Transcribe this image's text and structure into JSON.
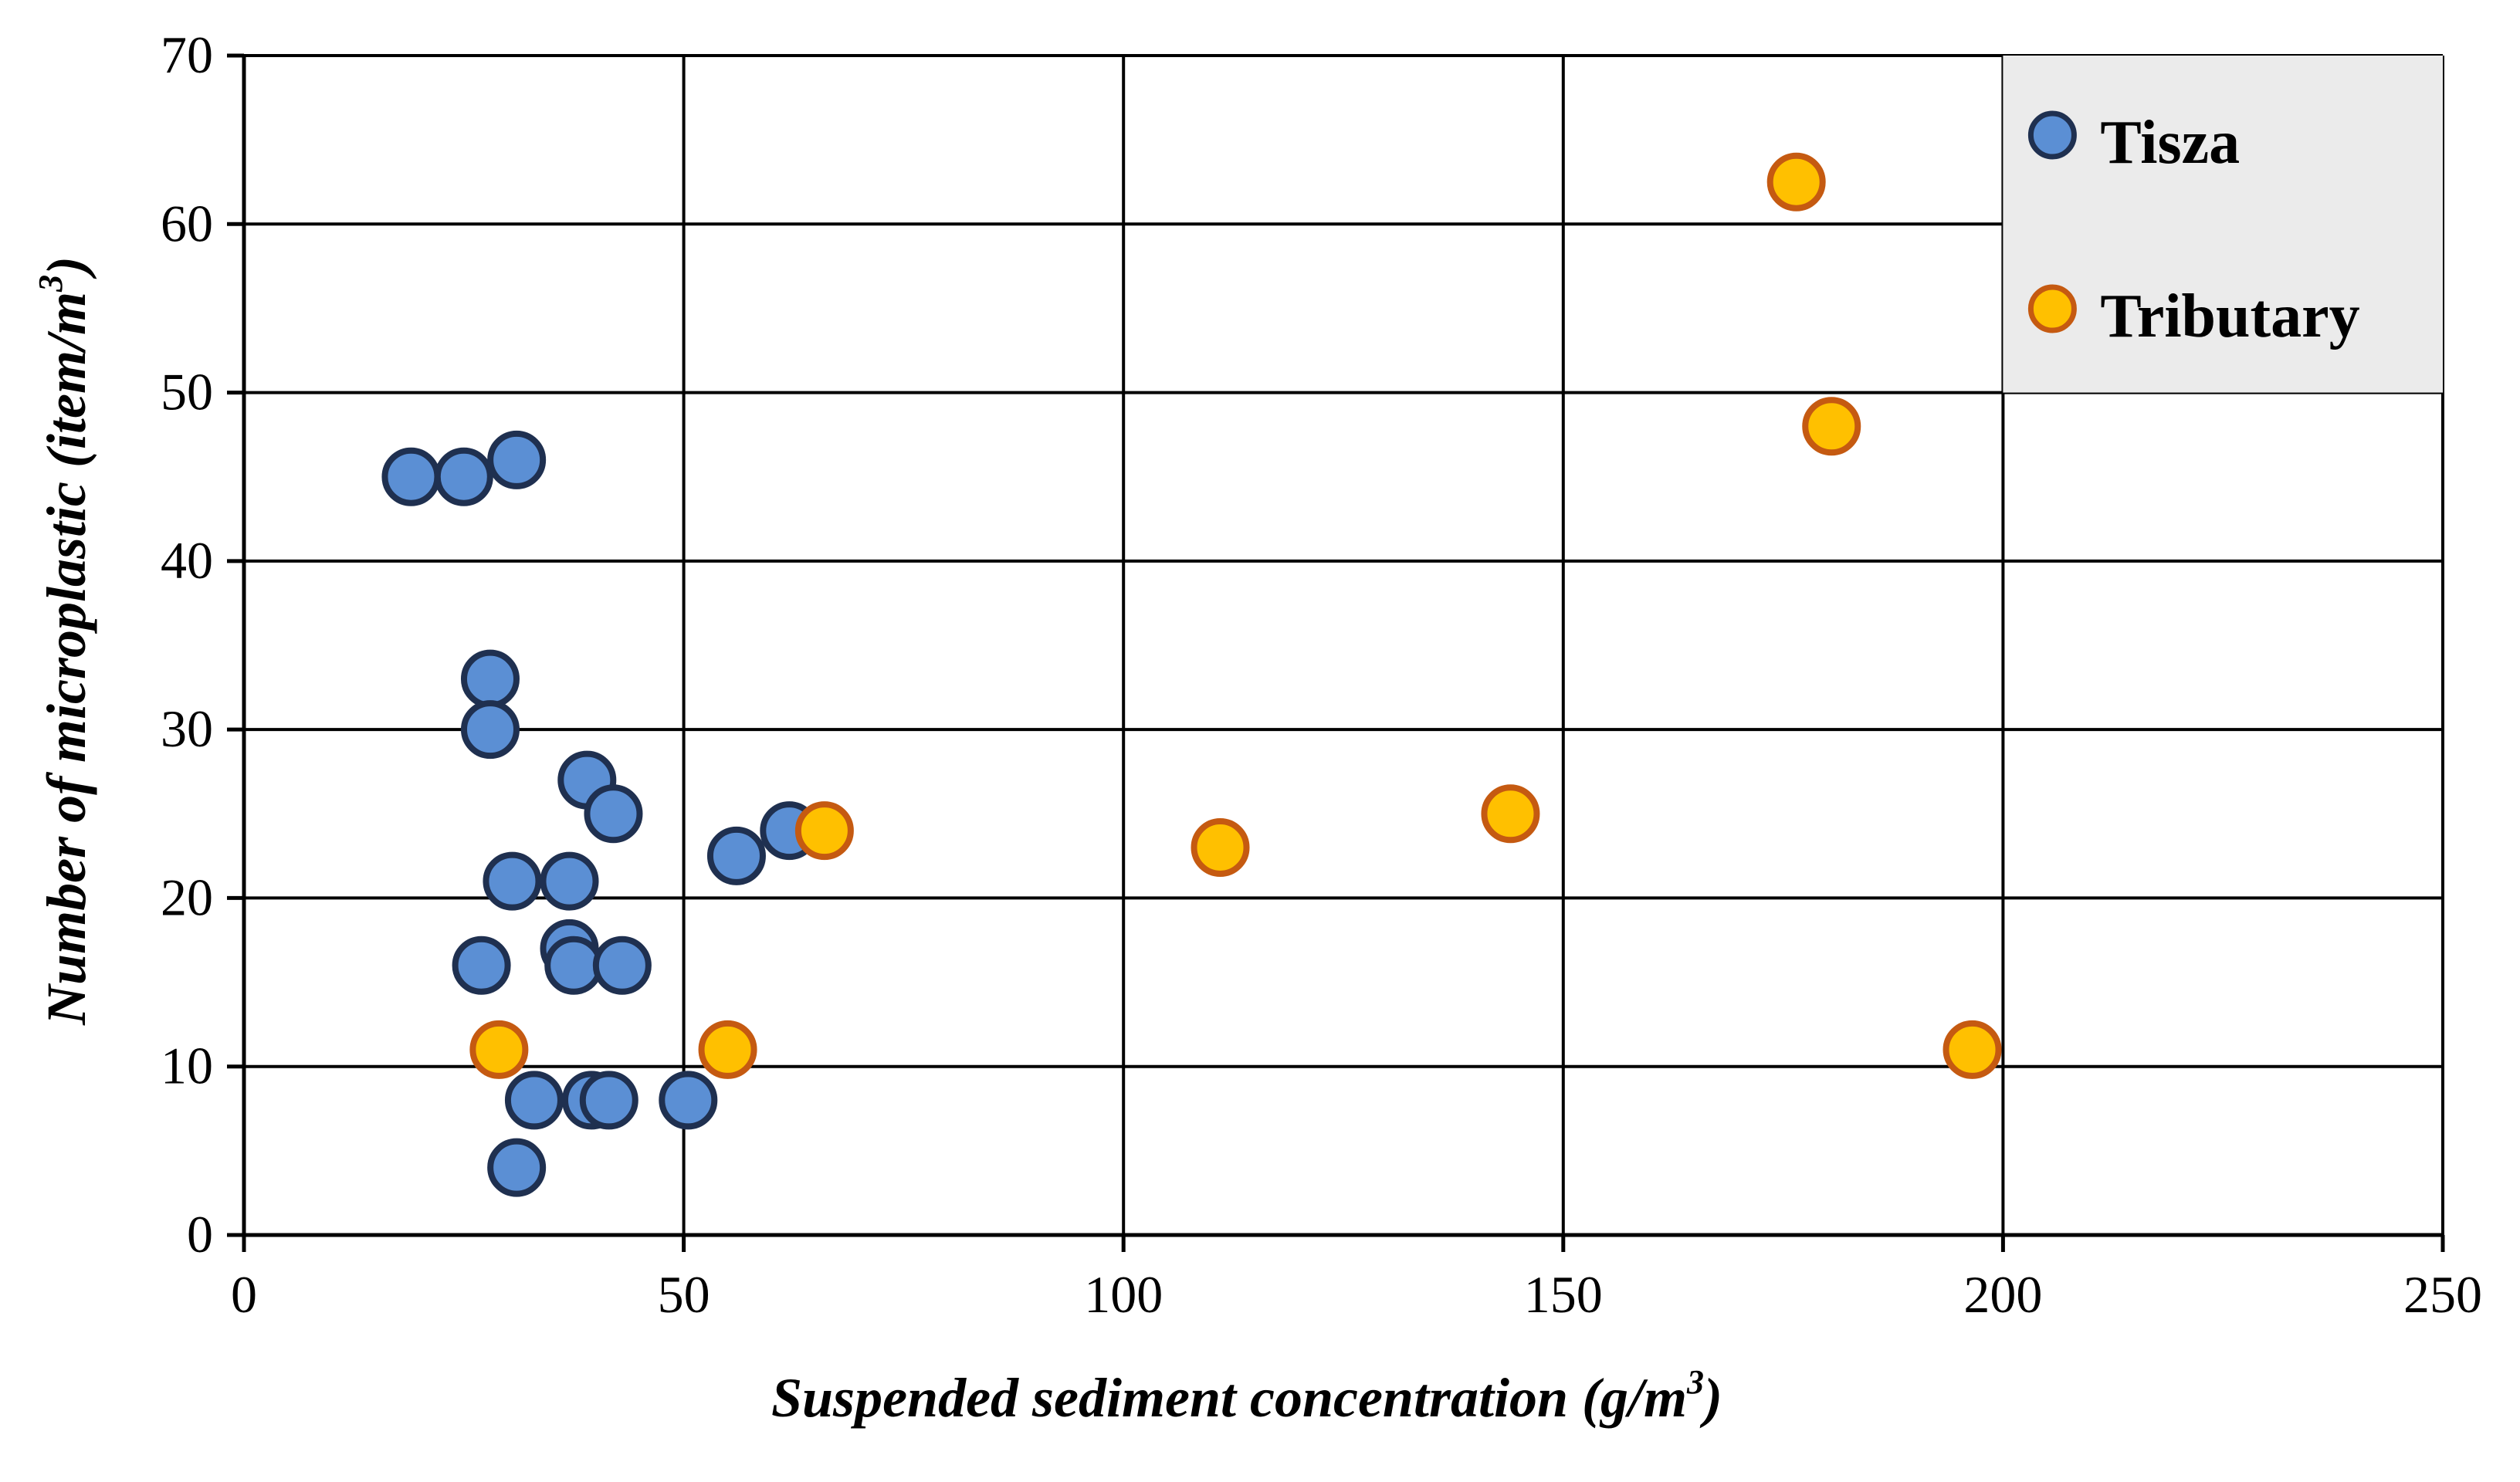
{
  "chart_data": {
    "type": "scatter",
    "title": "",
    "xlabel": "Suspended sediment concentration (g/m",
    "xlabel_sup": "3",
    "xlabel_end": ")",
    "ylabel": "Number of microplastic (item/m",
    "ylabel_sup": "3",
    "ylabel_end": ")",
    "xlim": [
      0,
      250
    ],
    "ylim": [
      0,
      70
    ],
    "xticks": [
      0,
      50,
      100,
      150,
      200,
      250
    ],
    "yticks": [
      0,
      10,
      20,
      30,
      40,
      50,
      60,
      70
    ],
    "grid": true,
    "legend_position": "top-right",
    "series": [
      {
        "name": "Tisza",
        "color": "#5b8fd4",
        "edge_color": "#1f3050",
        "points": [
          [
            19,
            45
          ],
          [
            25,
            45
          ],
          [
            31,
            46
          ],
          [
            28,
            33
          ],
          [
            28,
            30
          ],
          [
            39,
            27
          ],
          [
            42,
            25
          ],
          [
            30.5,
            21
          ],
          [
            37,
            21
          ],
          [
            27,
            16
          ],
          [
            37,
            17
          ],
          [
            37.5,
            16
          ],
          [
            43,
            16
          ],
          [
            56,
            22.5
          ],
          [
            62,
            24
          ],
          [
            33,
            8
          ],
          [
            39.5,
            8
          ],
          [
            41.5,
            8
          ],
          [
            50.5,
            8
          ],
          [
            31,
            4
          ]
        ]
      },
      {
        "name": "Tributary",
        "color": "#ffc000",
        "edge_color": "#c55a11",
        "points": [
          [
            29,
            11
          ],
          [
            55,
            11
          ],
          [
            66,
            24
          ],
          [
            111,
            23
          ],
          [
            144,
            25
          ],
          [
            176.5,
            62.5
          ],
          [
            180.5,
            48
          ],
          [
            196.5,
            11
          ]
        ]
      }
    ]
  }
}
